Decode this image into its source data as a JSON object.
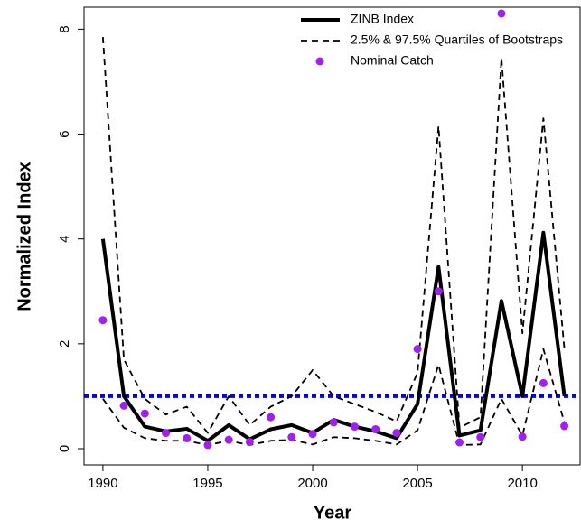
{
  "chart_data": {
    "type": "line",
    "x": [
      1990,
      1991,
      1992,
      1993,
      1994,
      1995,
      1996,
      1997,
      1998,
      1999,
      2000,
      2001,
      2002,
      2003,
      2004,
      2005,
      2006,
      2007,
      2008,
      2009,
      2010,
      2011,
      2012
    ],
    "series": [
      {
        "name": "ZINB Index",
        "color": "#000000",
        "style": "solid",
        "values": [
          4.0,
          1.0,
          0.42,
          0.33,
          0.38,
          0.15,
          0.45,
          0.18,
          0.37,
          0.45,
          0.3,
          0.55,
          0.42,
          0.33,
          0.2,
          0.85,
          3.47,
          0.25,
          0.35,
          2.82,
          1.0,
          4.12,
          1.0
        ]
      },
      {
        "name": "2.5% & 97.5% Quartiles of Bootstraps",
        "color": "#000000",
        "style": "dashed",
        "values": [
          7.85,
          1.7,
          0.95,
          0.65,
          0.8,
          0.3,
          1.0,
          0.45,
          0.8,
          1.0,
          1.5,
          1.0,
          0.85,
          0.7,
          0.52,
          1.45,
          6.15,
          0.4,
          0.6,
          7.45,
          2.2,
          6.3,
          1.9
        ]
      },
      {
        "color": "#000000",
        "style": "dashed",
        "values": [
          0.95,
          0.4,
          0.2,
          0.15,
          0.15,
          0.07,
          0.15,
          0.07,
          0.15,
          0.17,
          0.08,
          0.22,
          0.2,
          0.15,
          0.08,
          0.35,
          1.6,
          0.07,
          0.08,
          0.95,
          0.25,
          1.9,
          0.5
        ]
      },
      {
        "name": "Nominal Catch",
        "color": "#a020f0",
        "style": "points",
        "values": [
          2.45,
          0.82,
          0.67,
          0.3,
          0.2,
          0.07,
          0.17,
          0.13,
          0.6,
          0.22,
          0.28,
          0.5,
          0.42,
          0.37,
          0.3,
          1.9,
          3.0,
          0.12,
          0.22,
          8.3,
          0.23,
          1.25,
          0.43
        ]
      }
    ],
    "hline": {
      "value": 1,
      "color": "#0000ff"
    },
    "xlabel": "Year",
    "ylabel": "Normalized Index",
    "xlim": [
      1989.1,
      2012.75
    ],
    "ylim": [
      -0.31,
      8.42
    ],
    "xticks": [
      1990,
      1995,
      2000,
      2005,
      2010
    ],
    "yticks": [
      0,
      2,
      4,
      6,
      8
    ]
  }
}
